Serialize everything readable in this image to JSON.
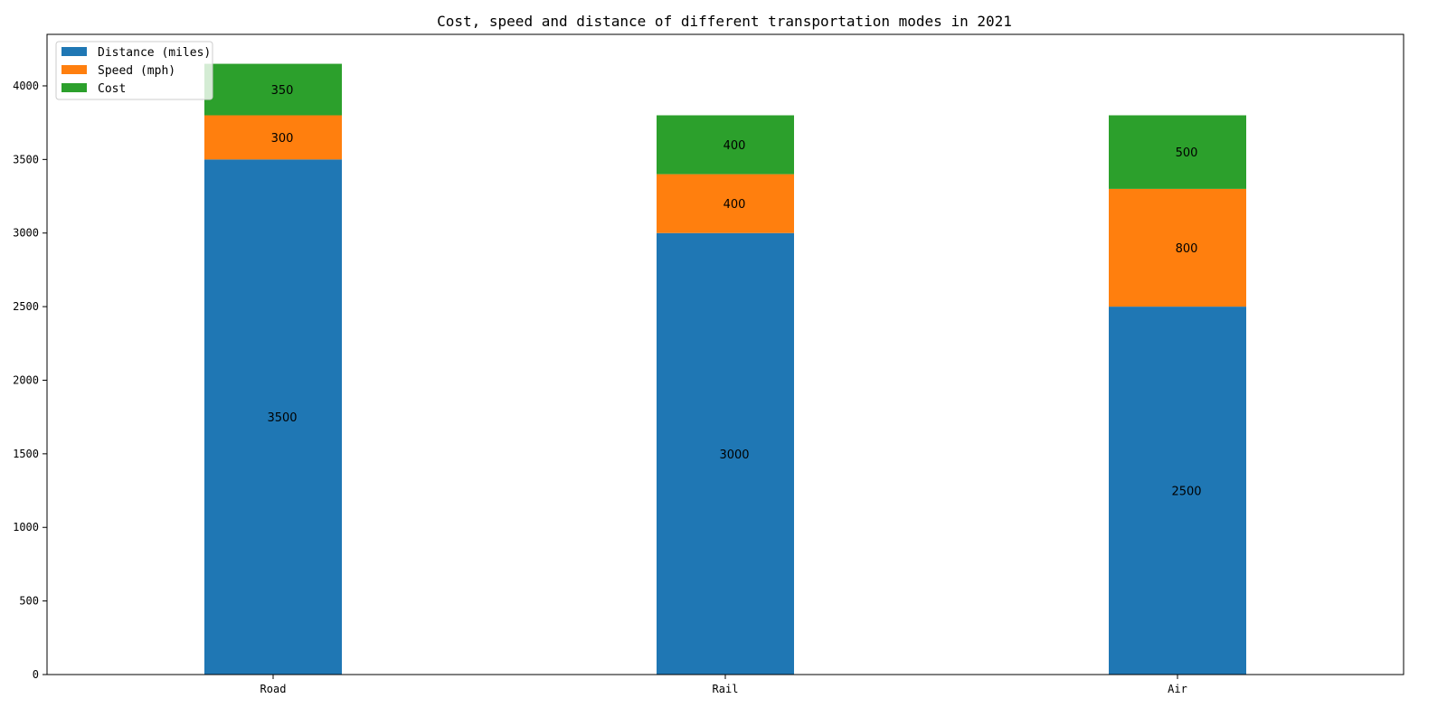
{
  "chart_data": {
    "type": "bar",
    "stacked": true,
    "title": "Cost, speed and distance of different transportation modes in 2021",
    "xlabel": "",
    "ylabel": "",
    "categories": [
      "Road",
      "Rail",
      "Air"
    ],
    "series": [
      {
        "name": "Distance (miles)",
        "values": [
          3500,
          3000,
          2500
        ],
        "color": "#1f77b4"
      },
      {
        "name": "Speed (mph)",
        "values": [
          300,
          400,
          800
        ],
        "color": "#ff7f0e"
      },
      {
        "name": "Cost",
        "values": [
          350,
          400,
          500
        ],
        "color": "#2ca02c"
      }
    ],
    "ylim": [
      0,
      4350
    ],
    "yticks": [
      0,
      500,
      1000,
      1500,
      2000,
      2500,
      3000,
      3500,
      4000
    ],
    "grid": false,
    "legend_position": "top-left"
  }
}
